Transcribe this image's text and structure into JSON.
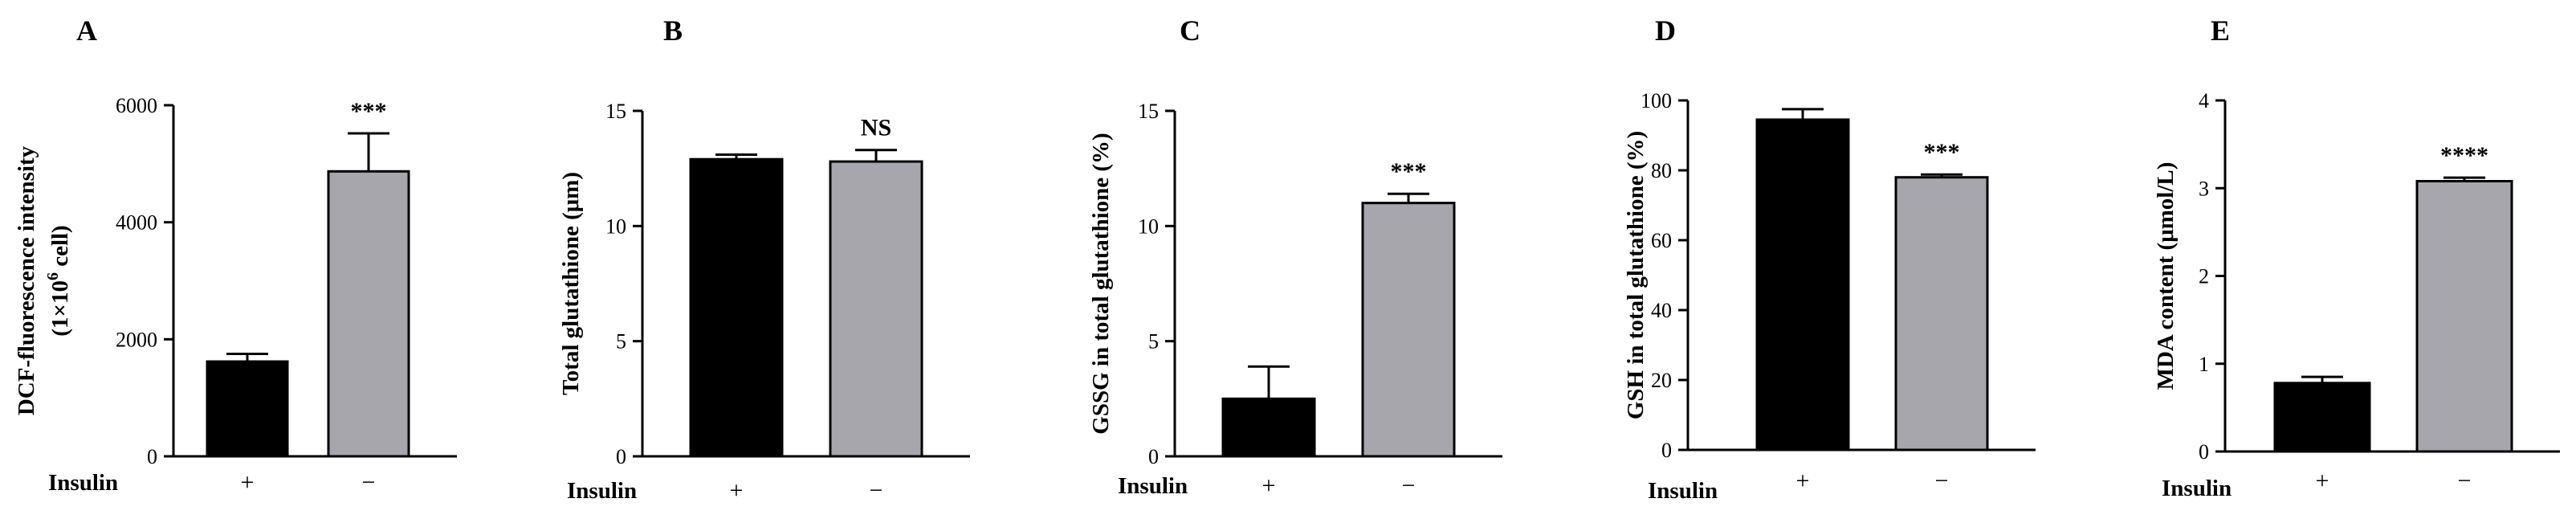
{
  "chart_data": [
    {
      "type": "bar",
      "panel": "A",
      "ylabel_lines": [
        "DCF-fluorescence intensity",
        "(1×10",
        "6",
        " cell)"
      ],
      "categories": [
        "+",
        "−"
      ],
      "group_label": "Insulin",
      "values": [
        1620,
        4870
      ],
      "errors": [
        130,
        650
      ],
      "ylim": [
        0,
        6000
      ],
      "yticks": [
        "0",
        "2000",
        "4000",
        "6000"
      ],
      "significance": [
        "",
        "***"
      ],
      "colors": [
        "#000000",
        "#a7a6ad"
      ]
    },
    {
      "type": "bar",
      "panel": "B",
      "ylabel_lines": [
        "Total glutathione (μm)"
      ],
      "categories": [
        "+",
        "−"
      ],
      "group_label": "Insulin",
      "values": [
        12.9,
        12.8
      ],
      "errors": [
        0.2,
        0.5
      ],
      "ylim": [
        0,
        15
      ],
      "yticks": [
        "0",
        "5",
        "10",
        "15"
      ],
      "significance": [
        "",
        "NS"
      ],
      "colors": [
        "#000000",
        "#a7a6ad"
      ]
    },
    {
      "type": "bar",
      "panel": "C",
      "ylabel_lines": [
        "GSSG in total glutathione (%)"
      ],
      "categories": [
        "+",
        "−"
      ],
      "group_label": "Insulin",
      "values": [
        2.5,
        11.0
      ],
      "errors": [
        1.4,
        0.4
      ],
      "ylim": [
        0,
        15
      ],
      "yticks": [
        "0",
        "5",
        "10",
        "15"
      ],
      "significance": [
        "",
        "***"
      ],
      "colors": [
        "#000000",
        "#a7a6ad"
      ]
    },
    {
      "type": "bar",
      "panel": "D",
      "ylabel_lines": [
        "GSH in total glutathione (%)"
      ],
      "categories": [
        "+",
        "−"
      ],
      "group_label": "Insulin",
      "values": [
        94.5,
        78.0
      ],
      "errors": [
        3.0,
        0.8
      ],
      "ylim": [
        0,
        100
      ],
      "yticks": [
        "0",
        "20",
        "40",
        "60",
        "80",
        "100"
      ],
      "significance": [
        "",
        "***"
      ],
      "colors": [
        "#000000",
        "#a7a6ad"
      ]
    },
    {
      "type": "bar",
      "panel": "E",
      "ylabel_lines": [
        "MDA content (μmol/L)"
      ],
      "categories": [
        "+",
        "−"
      ],
      "group_label": "Insulin",
      "values": [
        0.78,
        3.08
      ],
      "errors": [
        0.07,
        0.04
      ],
      "ylim": [
        0,
        4
      ],
      "yticks": [
        "0",
        "1",
        "2",
        "3",
        "4"
      ],
      "significance": [
        "",
        "****"
      ],
      "colors": [
        "#000000",
        "#a7a6ad"
      ]
    }
  ]
}
